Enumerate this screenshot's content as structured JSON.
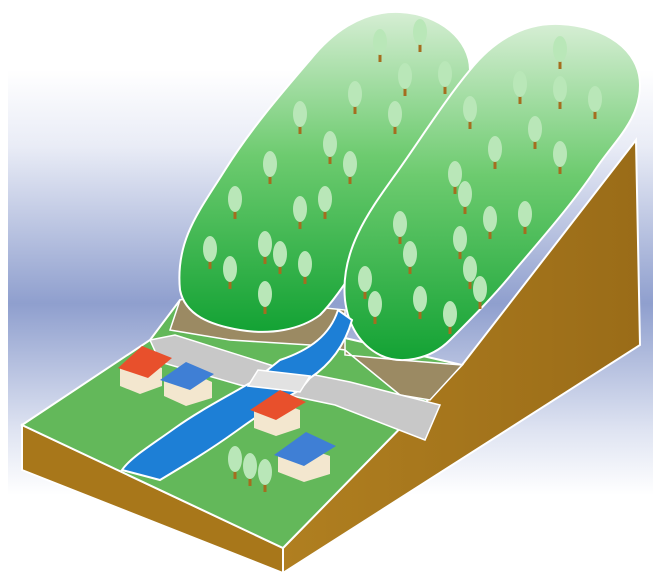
{
  "scene": {
    "subject": "",
    "colors": {
      "sky_top": "#ffffff",
      "sky_mid": "#8f9fce",
      "sky_bottom": "#ffffff",
      "soil": "#a8771a",
      "soil_dark": "#8e6214",
      "soil_light": "#c69a45",
      "grass": "#63b85a",
      "grass_light": "#8fd07e",
      "forest_dark": "#1fa83a",
      "forest_light": "#c4e4c1",
      "tree_foliage": "#b9e7b8",
      "trunk": "#a56d1f",
      "river": "#1d7fd6",
      "road": "#c8c8c8",
      "bank": "#9b8a63",
      "roof_red": "#e8502c",
      "roof_blue": "#3f7fd5",
      "wall": "#f3e7cf"
    }
  }
}
